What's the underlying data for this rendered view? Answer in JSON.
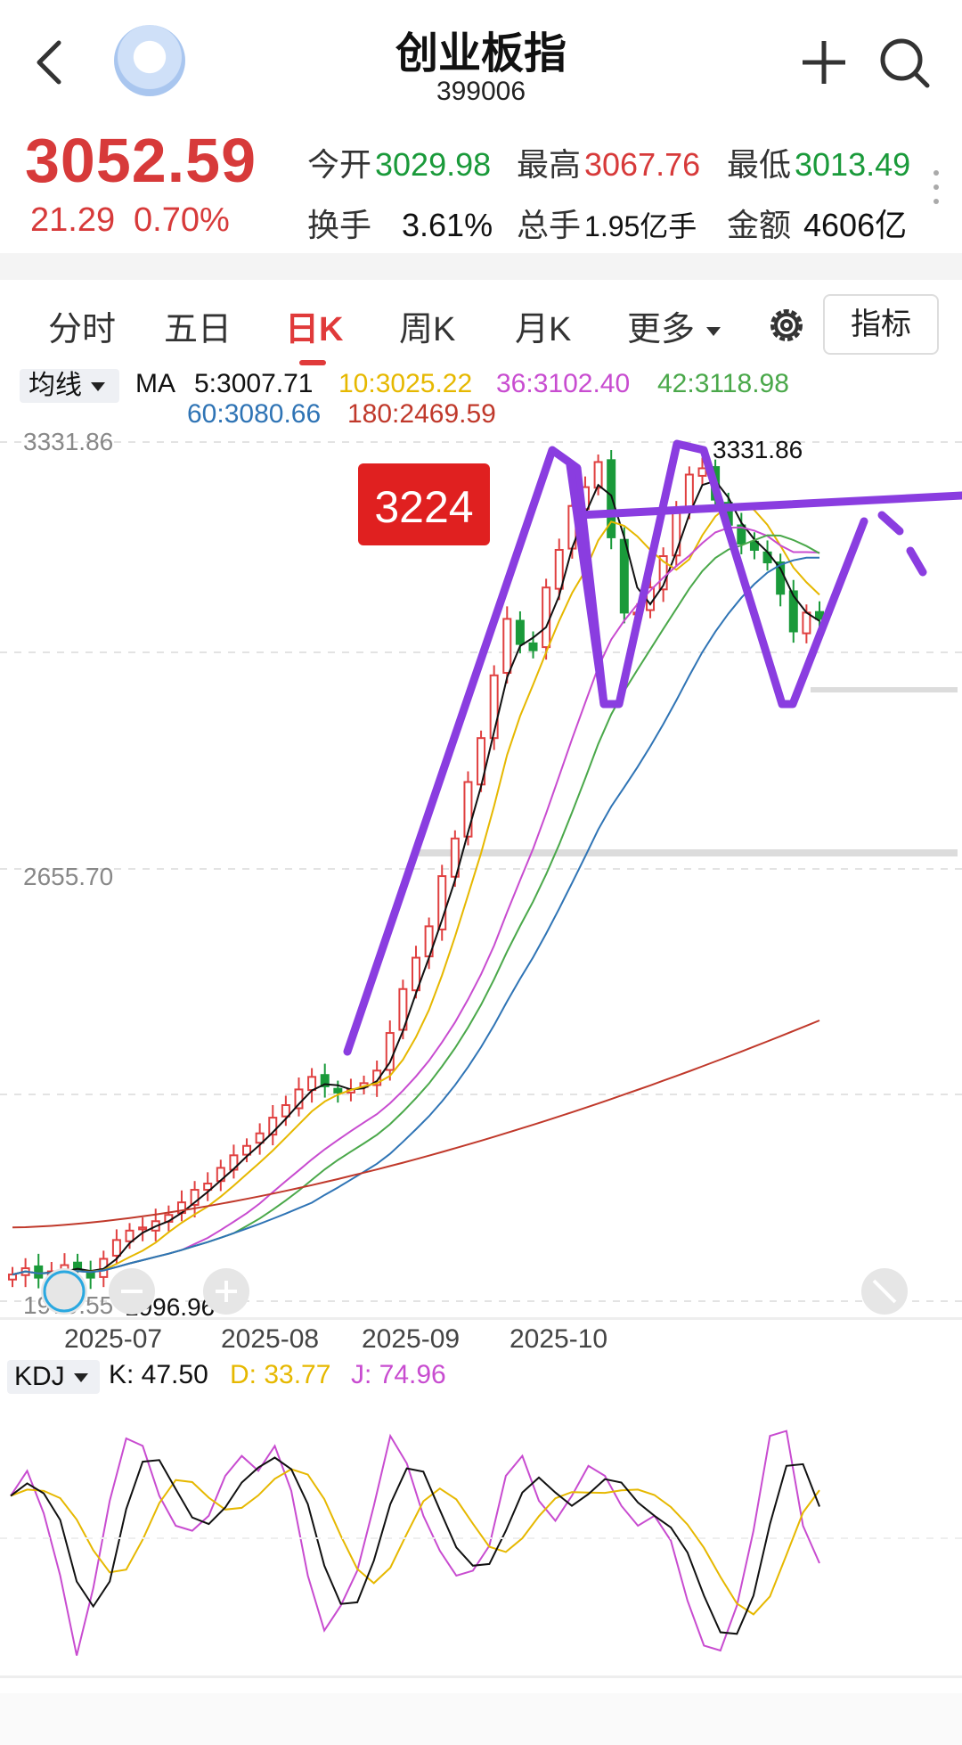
{
  "header": {
    "title": "创业板指",
    "code": "399006"
  },
  "quote": {
    "price": "3052.59",
    "change": "21.29",
    "change_pct": "0.70%",
    "open_label": "今开",
    "open": "3029.98",
    "high_label": "最高",
    "high": "3067.76",
    "low_label": "最低",
    "low": "3013.49",
    "turnover_label": "换手",
    "turnover": "3.61%",
    "volume_label": "总手",
    "volume": "1.95亿手",
    "amount_label": "金额",
    "amount": "4606亿"
  },
  "tabs": [
    {
      "label": "分时",
      "active": false
    },
    {
      "label": "五日",
      "active": false
    },
    {
      "label": "日K",
      "active": true
    },
    {
      "label": "周K",
      "active": false
    },
    {
      "label": "月K",
      "active": false
    },
    {
      "label": "更多",
      "active": false
    }
  ],
  "indicator_button": "指标",
  "ma_legend": {
    "selector": "均线",
    "prefix": "MA",
    "items": [
      {
        "label": "5:3007.71",
        "color": "#111111"
      },
      {
        "label": "10:3025.22",
        "color": "#e6b800"
      },
      {
        "label": "36:3102.40",
        "color": "#c84cd0"
      },
      {
        "label": "42:3118.98",
        "color": "#4aa84a"
      },
      {
        "label": "60:3080.66",
        "color": "#2f74b5"
      },
      {
        "label": "180:2469.59",
        "color": "#c0392b"
      }
    ]
  },
  "kdj_legend": {
    "selector": "KDJ",
    "items": [
      {
        "label": "K: 47.50",
        "color": "#111111"
      },
      {
        "label": "D: 33.77",
        "color": "#e6b800"
      },
      {
        "label": "J: 74.96",
        "color": "#c84cd0"
      }
    ]
  },
  "chart_data": {
    "type": "candlestick",
    "y_axis_labels": [
      "3331.86",
      "2655.70",
      "1979.55"
    ],
    "ylim": [
      1979.55,
      3331.86
    ],
    "x_ticks": [
      "2025-07",
      "2025-08",
      "2025-09",
      "2025-10"
    ],
    "annotations": {
      "max_label": "3331.86",
      "min_label": "1996.96",
      "box_label": "3224"
    },
    "close_series_approx": [
      2005,
      2015,
      2000,
      2010,
      2020,
      2012,
      2000,
      2030,
      2060,
      2075,
      2080,
      2090,
      2100,
      2120,
      2140,
      2150,
      2175,
      2195,
      2210,
      2230,
      2255,
      2275,
      2300,
      2320,
      2305,
      2295,
      2300,
      2310,
      2330,
      2390,
      2460,
      2510,
      2560,
      2640,
      2700,
      2790,
      2860,
      2960,
      3050,
      3010,
      3000,
      3100,
      3160,
      3230,
      3260,
      3300,
      3180,
      3060,
      3060,
      3100,
      3150,
      3220,
      3280,
      3290,
      3240,
      3200,
      3170,
      3160,
      3140,
      3090,
      3030,
      3060,
      3050
    ]
  }
}
